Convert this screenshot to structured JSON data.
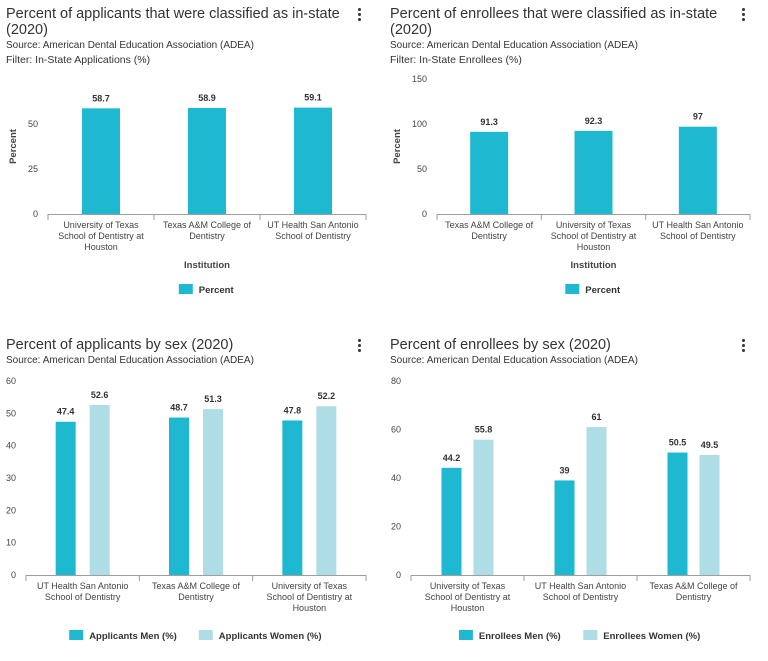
{
  "colors": {
    "primary": "#1eb9d0",
    "secondary": "#aedde6",
    "axis": "#9e9e9e",
    "grid": "#e8e8e8"
  },
  "menu_icon": "more-vert-icon",
  "panels": [
    {
      "title": "Percent of applicants that were classified as in-state (2020)",
      "source": "Source: American Dental Education Association (ADEA)",
      "filter": "Filter: In-State Applications (%)",
      "chart_data": {
        "type": "bar",
        "title": "Percent of applicants that were classified as in-state (2020)",
        "categories": [
          [
            "University of Texas",
            "School of Dentistry at",
            "Houston"
          ],
          [
            "Texas A&M College of",
            "Dentistry"
          ],
          [
            "UT Health San Antonio",
            "School of Dentistry"
          ]
        ],
        "series": [
          {
            "name": "Percent",
            "values": [
              58.7,
              58.9,
              59.1
            ]
          }
        ],
        "ylabel": "Percent",
        "xlabel": "Institution",
        "ylim": [
          0,
          75
        ],
        "yticks": [
          0,
          25,
          50
        ]
      }
    },
    {
      "title": "Percent of enrollees that were classified as in-state (2020)",
      "source": "Source: American Dental Education Association (ADEA)",
      "filter": "Filter: In-State Enrollees (%)",
      "chart_data": {
        "type": "bar",
        "title": "Percent of enrollees that were classified as in-state (2020)",
        "categories": [
          [
            "Texas A&M College of",
            "Dentistry"
          ],
          [
            "University of Texas",
            "School of Dentistry at",
            "Houston"
          ],
          [
            "UT Health San Antonio",
            "School of Dentistry"
          ]
        ],
        "series": [
          {
            "name": "Percent",
            "values": [
              91.3,
              92.3,
              97
            ]
          }
        ],
        "ylabel": "Percent",
        "xlabel": "Institution",
        "ylim": [
          0,
          150
        ],
        "yticks": [
          0,
          50,
          100,
          150
        ]
      }
    },
    {
      "title": "Percent of applicants by sex (2020)",
      "source": "Source: American Dental Education Association (ADEA)",
      "filter": "",
      "chart_data": {
        "type": "bar",
        "title": "Percent of applicants by sex (2020)",
        "categories": [
          [
            "UT Health San Antonio",
            "School of Dentistry"
          ],
          [
            "Texas A&M College of",
            "Dentistry"
          ],
          [
            "University of Texas",
            "School of Dentistry at",
            "Houston"
          ]
        ],
        "series": [
          {
            "name": "Applicants Men (%)",
            "values": [
              47.4,
              48.7,
              47.8
            ]
          },
          {
            "name": "Applicants Women (%)",
            "values": [
              52.6,
              51.3,
              52.2
            ]
          }
        ],
        "ylabel": "",
        "xlabel": "",
        "ylim": [
          0,
          60
        ],
        "yticks": [
          0,
          10,
          20,
          30,
          40,
          50,
          60
        ]
      }
    },
    {
      "title": "Percent of enrollees by sex (2020)",
      "source": "Source: American Dental Education Association (ADEA)",
      "filter": "",
      "chart_data": {
        "type": "bar",
        "title": "Percent of enrollees by sex (2020)",
        "categories": [
          [
            "University of Texas",
            "School of Dentistry at",
            "Houston"
          ],
          [
            "UT Health San Antonio",
            "School of Dentistry"
          ],
          [
            "Texas A&M College of",
            "Dentistry"
          ]
        ],
        "series": [
          {
            "name": "Enrollees Men (%)",
            "values": [
              44.2,
              39,
              50.5
            ]
          },
          {
            "name": "Enrollees Women (%)",
            "values": [
              55.8,
              61,
              49.5
            ]
          }
        ],
        "ylabel": "",
        "xlabel": "",
        "ylim": [
          0,
          80
        ],
        "yticks": [
          0,
          20,
          40,
          60,
          80
        ]
      }
    }
  ]
}
